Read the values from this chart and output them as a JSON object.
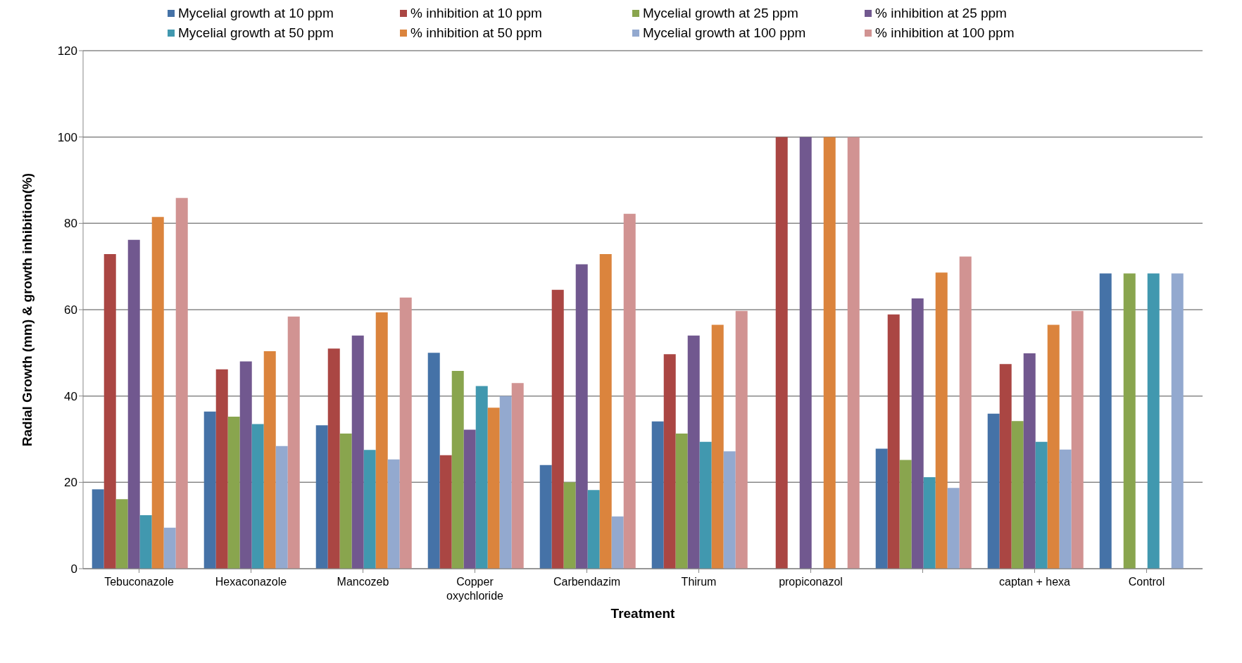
{
  "chart_data": {
    "type": "bar",
    "xlabel": "Treatment",
    "ylabel": "Radial Growth (mm) & growth inhibition(%)",
    "categories": [
      "Tebuconazole",
      "Hexaconazole",
      "Mancozeb",
      "Copper oxychloride",
      "Carbendazim",
      "Thirum",
      "propiconazol",
      null,
      "captan + hexa",
      "Control"
    ],
    "series": [
      {
        "name": "Mycelial growth at 10 ppm",
        "color": "#4572a7",
        "values": [
          18.4,
          36.4,
          33.2,
          50,
          24.0,
          34.1,
          0,
          27.8,
          35.9,
          68.4
        ]
      },
      {
        "name": "% inhibition at 10 ppm",
        "color": "#aa4643",
        "values": [
          72.9,
          46.2,
          51.0,
          26.3,
          64.6,
          49.7,
          100,
          58.9,
          47.4,
          0
        ]
      },
      {
        "name": "Mycelial growth at 25 ppm",
        "color": "#89a54e",
        "values": [
          16.1,
          35.2,
          31.3,
          45.8,
          20.0,
          31.3,
          0,
          25.2,
          34.2,
          68.4
        ]
      },
      {
        "name": "% inhibition at 25 ppm",
        "color": "#71588f",
        "values": [
          76.2,
          48.0,
          54.0,
          32.2,
          70.5,
          54.0,
          100,
          62.6,
          49.9,
          0
        ]
      },
      {
        "name": "Mycelial growth at 50 ppm",
        "color": "#4198af",
        "values": [
          12.4,
          33.5,
          27.5,
          42.3,
          18.2,
          29.4,
          0,
          21.2,
          29.4,
          68.4
        ]
      },
      {
        "name": "% inhibition at 50 ppm",
        "color": "#db843d",
        "values": [
          81.5,
          50.4,
          59.4,
          37.3,
          72.9,
          56.5,
          100,
          68.6,
          56.5,
          0
        ]
      },
      {
        "name": "Mycelial growth at 100 ppm",
        "color": "#93a9cf",
        "values": [
          9.5,
          28.4,
          25.3,
          40.0,
          12.1,
          27.2,
          0,
          18.7,
          27.6,
          68.4
        ]
      },
      {
        "name": "% inhibition at 100 ppm",
        "color": "#d19392",
        "values": [
          85.9,
          58.4,
          62.8,
          43.0,
          82.2,
          59.7,
          100,
          72.3,
          59.7,
          0
        ]
      }
    ],
    "ylim": [
      0,
      120
    ],
    "yticks": [
      0,
      20,
      40,
      60,
      80,
      100,
      120
    ],
    "grid": "y",
    "legend": "top"
  }
}
